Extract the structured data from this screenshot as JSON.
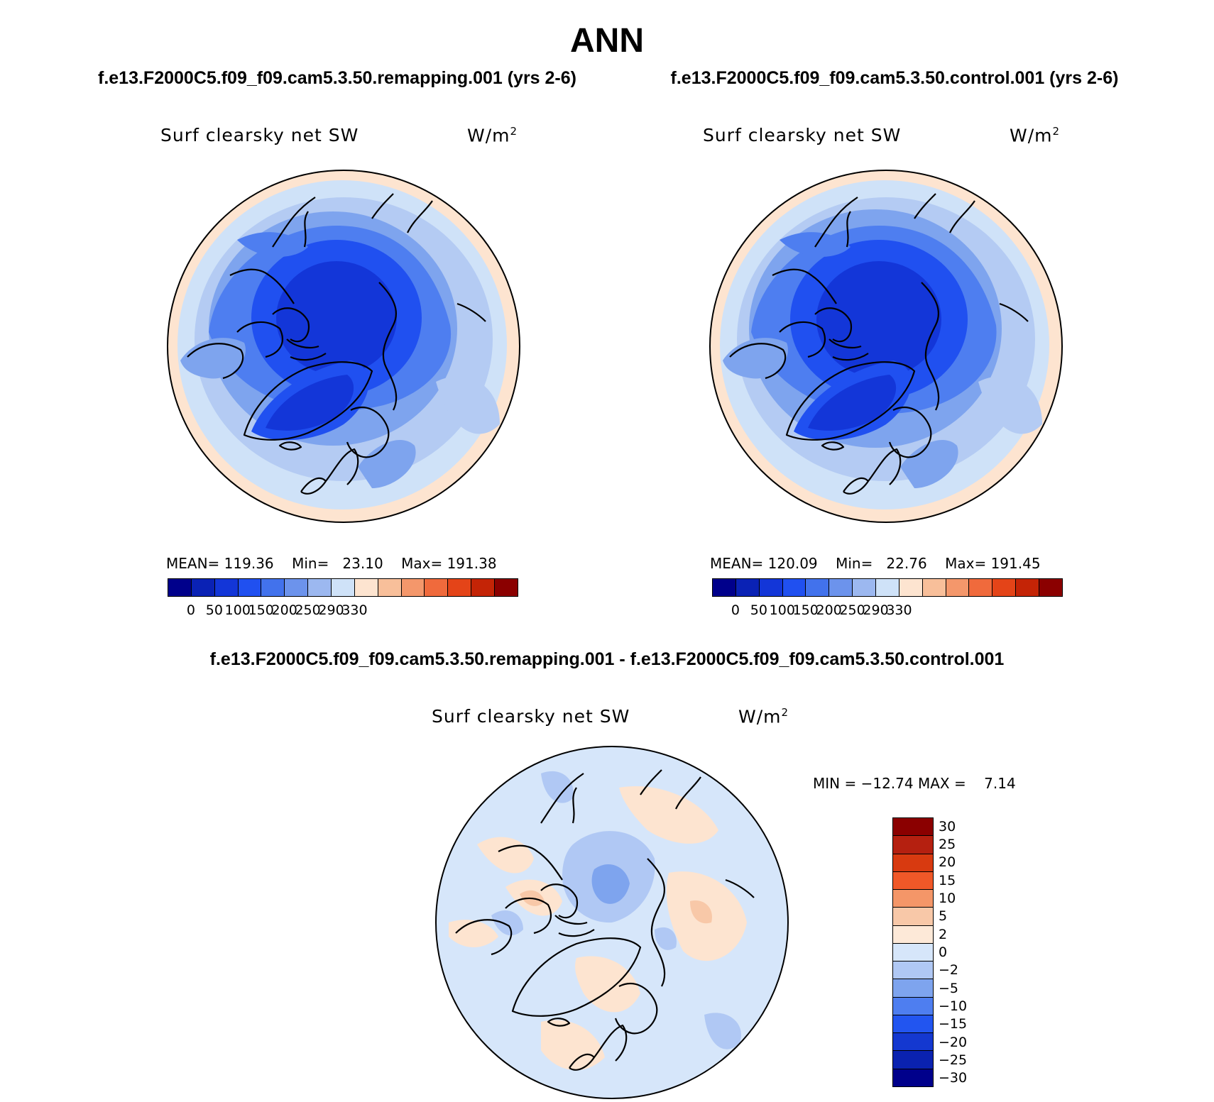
{
  "page": {
    "title": "ANN",
    "case_left": "f.e13.F2000C5.f09_f09.cam5.3.50.remapping.001 (yrs 2-6)",
    "case_right": "f.e13.F2000C5.f09_f09.cam5.3.50.control.001 (yrs 2-6)",
    "diff_title": "f.e13.F2000C5.f09_f09.cam5.3.50.remapping.001 - f.e13.F2000C5.f09_f09.cam5.3.50.control.001"
  },
  "panels": {
    "left": {
      "variable": "Surf clearsky net SW",
      "units_base": "W/m",
      "units_exp": "2",
      "mean_label": "MEAN=",
      "mean": "119.36",
      "min_label": "Min=",
      "min": "23.10",
      "max_label": "Max=",
      "max": "191.38"
    },
    "right": {
      "variable": "Surf clearsky net SW",
      "units_base": "W/m",
      "units_exp": "2",
      "mean_label": "MEAN=",
      "mean": "120.09",
      "min_label": "Min=",
      "min": "22.76",
      "max_label": "Max=",
      "max": "191.45"
    },
    "diff": {
      "variable": "Surf clearsky net SW",
      "units_base": "W/m",
      "units_exp": "2",
      "min_label": "MIN =",
      "min": "−12.74",
      "max_label": "MAX =",
      "max": "7.14"
    }
  },
  "legend": {
    "field_colors": [
      "#00008b",
      "#0a22b5",
      "#1336d8",
      "#2050f0",
      "#4272ec",
      "#6c93ec",
      "#9cb8f0",
      "#cfe2f8",
      "#fde4d0",
      "#f8bf9a",
      "#f4976b",
      "#f06a3c",
      "#e44418",
      "#c42406",
      "#8b0000"
    ],
    "field_ticks": [
      "0",
      "50",
      "100",
      "150",
      "200",
      "250",
      "290",
      "330"
    ],
    "diff_colors": [
      "#8b0000",
      "#b52010",
      "#d83a10",
      "#f05828",
      "#f49668",
      "#f8c8a8",
      "#fde9d8",
      "#d6e6fa",
      "#b0c8f4",
      "#7ea4ee",
      "#4e7ef0",
      "#2255f0",
      "#1438d0",
      "#0a22b0",
      "#00008b"
    ],
    "diff_ticks": [
      "30",
      "25",
      "20",
      "15",
      "10",
      "5",
      "2",
      "0",
      "−2",
      "−5",
      "−10",
      "−15",
      "−20",
      "−25",
      "−30"
    ]
  },
  "map_colors": {
    "outer_land_warm": "#fde4d0",
    "pale_blue": "#cfe2f8",
    "light_blue": "#b4cbf3",
    "mid_blue": "#7ea4ee",
    "blue": "#4e7ef0",
    "deep_blue": "#2050f0",
    "core_blue": "#1336d8",
    "diff_bg": "#d6e6fa",
    "diff_warm": "#fde4d0",
    "diff_warm2": "#f8c8a8",
    "diff_cool": "#b0c8f4",
    "diff_cool2": "#7ea4ee"
  }
}
